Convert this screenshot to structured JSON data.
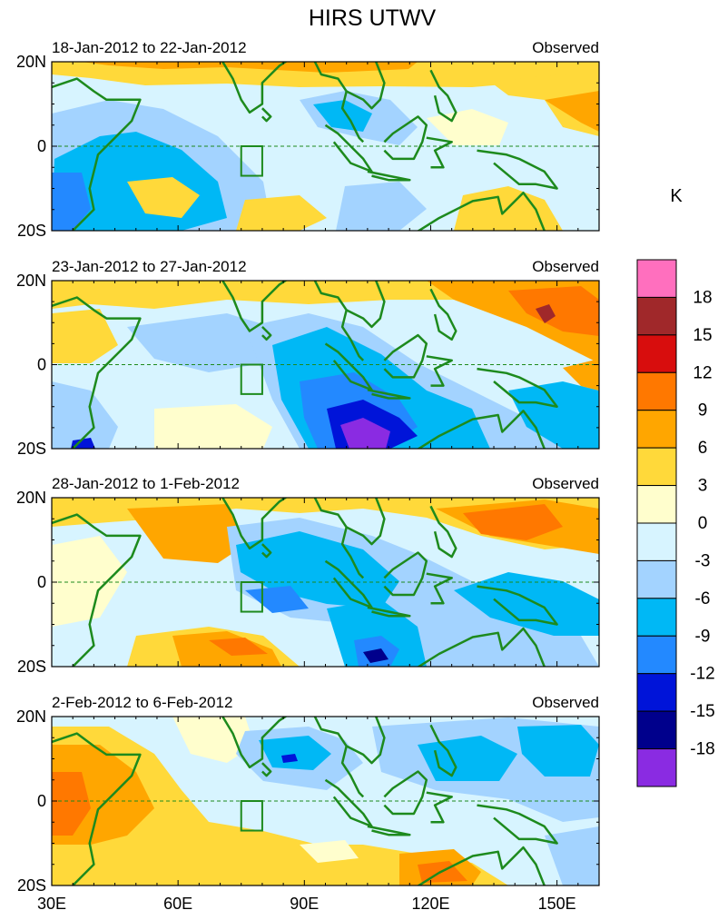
{
  "chart_data": {
    "type": "heatmap",
    "title": "HIRS UTWV",
    "units": "K",
    "x_ticks": [
      "30E",
      "60E",
      "90E",
      "120E",
      "150E"
    ],
    "x_tick_values": [
      30,
      60,
      90,
      120,
      150
    ],
    "xlim": [
      30,
      160
    ],
    "y_ticks": [
      "20N",
      "0",
      "20S"
    ],
    "y_tick_values": [
      20,
      0,
      -20
    ],
    "ylim": [
      -20,
      20
    ],
    "colorbar": {
      "labels": [
        "18",
        "15",
        "12",
        "9",
        "6",
        "3",
        "0",
        "-3",
        "-6",
        "-9",
        "-12",
        "-15",
        "-18"
      ],
      "colors": [
        "#ff6fbe",
        "#a0282a",
        "#d80d0d",
        "#ff7800",
        "#ffa600",
        "#ffd93a",
        "#fffecd",
        "#d7f4ff",
        "#a3d3ff",
        "#00b8f5",
        "#2389ff",
        "#0014d9",
        "#00008c",
        "#8a2be2"
      ]
    },
    "panels": [
      {
        "period": "18-Jan-2012 to 22-Jan-2012",
        "label": "Observed"
      },
      {
        "period": "23-Jan-2012 to 27-Jan-2012",
        "label": "Observed"
      },
      {
        "period": "28-Jan-2012 to 1-Feb-2012",
        "label": "Observed"
      },
      {
        "period": "2-Feb-2012 to 6-Feb-2012",
        "label": "Observed"
      }
    ],
    "box_region": {
      "lon": [
        75,
        80
      ],
      "lat": [
        -7,
        0
      ]
    }
  }
}
